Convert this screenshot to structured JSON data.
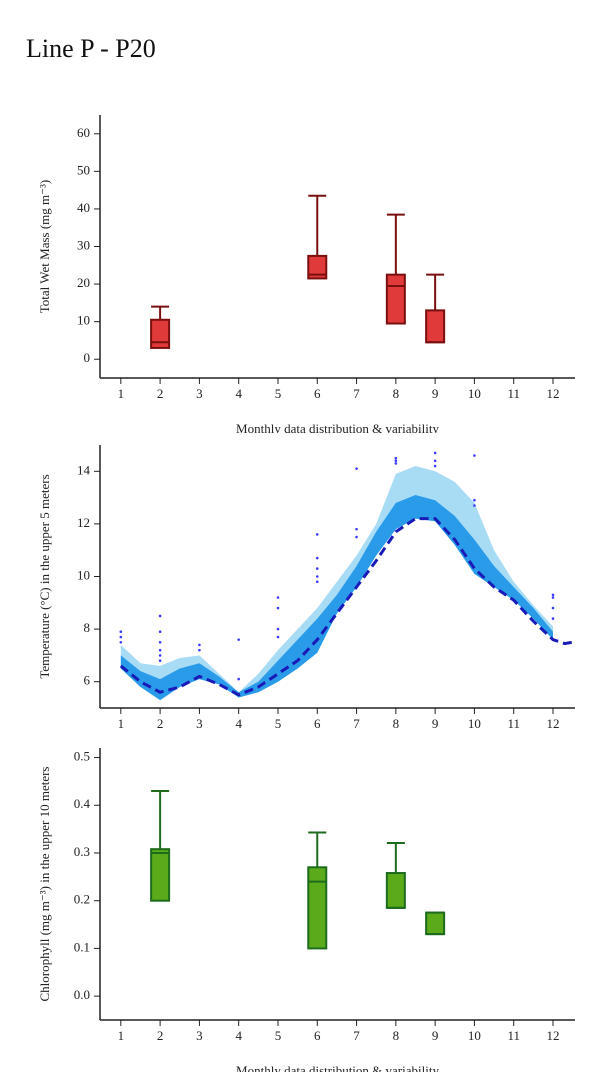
{
  "title": "Line P - P20",
  "chart_data": [
    {
      "type": "box",
      "ylabel": "Total Wet Mass (mg m⁻³)",
      "xlabel": "Monthly data distribution & variability",
      "xlim": [
        0.47,
        12.56
      ],
      "xticks": [
        1,
        2,
        3,
        4,
        5,
        6,
        7,
        8,
        9,
        10,
        11,
        12
      ],
      "ylim": [
        -5,
        65
      ],
      "yticks": [
        0,
        10,
        20,
        30,
        40,
        50,
        60
      ],
      "color": "#e03a3a",
      "edge_color": "#7a0f0f",
      "boxes": [
        {
          "x": 2,
          "min": 3,
          "q1": 3,
          "median": 4.5,
          "q3": 10.5,
          "max": 14
        },
        {
          "x": 6,
          "min": 21.5,
          "q1": 21.5,
          "median": 22.5,
          "q3": 27.5,
          "max": 43.5
        },
        {
          "x": 8,
          "min": 9.5,
          "q1": 9.5,
          "median": 19.5,
          "q3": 22.5,
          "max": 38.5
        },
        {
          "x": 9,
          "min": 4.5,
          "q1": 4.5,
          "median": 4.5,
          "q3": 13,
          "max": 22.5
        }
      ]
    },
    {
      "type": "band",
      "ylabel": "Temperature (°C) in the upper 5 meters",
      "xlim": [
        0.47,
        12.56
      ],
      "xticks": [
        1,
        2,
        3,
        4,
        5,
        6,
        7,
        8,
        9,
        10,
        11,
        12
      ],
      "ylim": [
        5,
        15
      ],
      "yticks": [
        6,
        8,
        10,
        12,
        14
      ],
      "x": [
        1,
        1.5,
        2,
        2.5,
        3,
        3.5,
        4,
        4.5,
        5,
        5.5,
        6,
        6.5,
        7,
        7.5,
        8,
        8.5,
        9,
        9.5,
        10,
        10.5,
        11,
        11.5,
        12,
        12.3,
        12.5
      ],
      "bands": [
        {
          "color": "#a8dcf5",
          "upper": [
            7.4,
            6.7,
            6.6,
            6.9,
            7.0,
            6.3,
            5.6,
            6.3,
            7.2,
            8.0,
            8.8,
            9.8,
            10.8,
            12.0,
            13.9,
            14.2,
            14.0,
            13.6,
            12.8,
            11.0,
            9.8,
            8.9,
            8.1,
            null,
            null
          ],
          "lower": [
            6.5,
            5.8,
            5.3,
            5.8,
            6.1,
            5.9,
            5.4,
            5.6,
            6.0,
            6.5,
            7.1,
            8.6,
            9.6,
            10.8,
            11.8,
            12.2,
            12.1,
            11.2,
            10.1,
            9.6,
            9.1,
            8.4,
            7.6,
            null,
            null
          ]
        },
        {
          "color": "#2a9be8",
          "upper": [
            7.0,
            6.4,
            6.1,
            6.5,
            6.7,
            6.2,
            5.6,
            6.0,
            6.8,
            7.6,
            8.4,
            9.3,
            10.4,
            11.7,
            12.8,
            13.1,
            12.9,
            12.3,
            11.4,
            10.4,
            9.6,
            8.8,
            7.9,
            null,
            null
          ],
          "lower": [
            6.5,
            5.8,
            5.3,
            5.8,
            6.1,
            5.9,
            5.4,
            5.6,
            6.0,
            6.5,
            7.1,
            8.6,
            9.6,
            10.8,
            11.8,
            12.2,
            12.1,
            11.2,
            10.1,
            9.6,
            9.1,
            8.4,
            7.6,
            null,
            null
          ]
        }
      ],
      "series": [
        {
          "color": "#1a1ab8",
          "dashed": true,
          "values": [
            6.6,
            6.0,
            5.6,
            5.8,
            6.2,
            5.9,
            5.5,
            5.8,
            6.3,
            6.8,
            7.6,
            8.6,
            9.6,
            10.6,
            11.7,
            12.2,
            12.2,
            11.4,
            10.3,
            9.6,
            9.1,
            8.3,
            7.6,
            7.45,
            7.5
          ]
        }
      ],
      "points": {
        "color": "#3b3bff",
        "x": [
          1,
          1,
          1,
          2,
          2,
          2,
          2,
          2,
          2,
          3,
          3,
          4,
          4,
          5,
          5,
          5,
          5,
          6,
          6,
          6,
          6,
          6,
          7,
          7,
          7,
          8,
          8,
          8,
          9,
          9,
          9,
          10,
          10,
          10,
          12,
          12,
          12,
          12
        ],
        "y": [
          7.9,
          7.7,
          7.5,
          8.5,
          7.9,
          7.5,
          7.2,
          7.0,
          6.8,
          7.4,
          7.2,
          7.6,
          6.1,
          9.2,
          8.8,
          8.0,
          7.7,
          11.6,
          10.7,
          10.3,
          10.0,
          9.8,
          14.1,
          11.8,
          11.5,
          14.5,
          14.4,
          14.3,
          14.7,
          14.4,
          14.2,
          14.6,
          12.9,
          12.7,
          9.3,
          9.2,
          8.8,
          8.4
        ]
      }
    },
    {
      "type": "box",
      "ylabel": "Chlorophyll (mg m⁻³) in the upper 10 meters",
      "xlabel": "Monthly data distribution & variability",
      "xlim": [
        0.47,
        12.56
      ],
      "xticks": [
        1,
        2,
        3,
        4,
        5,
        6,
        7,
        8,
        9,
        10,
        11,
        12
      ],
      "ylim": [
        -0.05,
        0.52
      ],
      "yticks": [
        {
          "value": 0,
          "label": "0.0"
        },
        0.1,
        0.2,
        0.3,
        0.4,
        0.5
      ],
      "color": "#5aaa1a",
      "edge_color": "#1d6b1d",
      "boxes": [
        {
          "x": 2,
          "min": 0.2,
          "q1": 0.2,
          "median": 0.3,
          "q3": 0.308,
          "max": 0.43
        },
        {
          "x": 6,
          "min": 0.1,
          "q1": 0.1,
          "median": 0.24,
          "q3": 0.27,
          "max": 0.343
        },
        {
          "x": 8,
          "min": 0.185,
          "q1": 0.185,
          "median": 0.185,
          "q3": 0.258,
          "max": 0.321
        },
        {
          "x": 9,
          "min": 0.13,
          "q1": 0.13,
          "median": 0.13,
          "q3": 0.175,
          "max": 0.175
        }
      ]
    }
  ]
}
